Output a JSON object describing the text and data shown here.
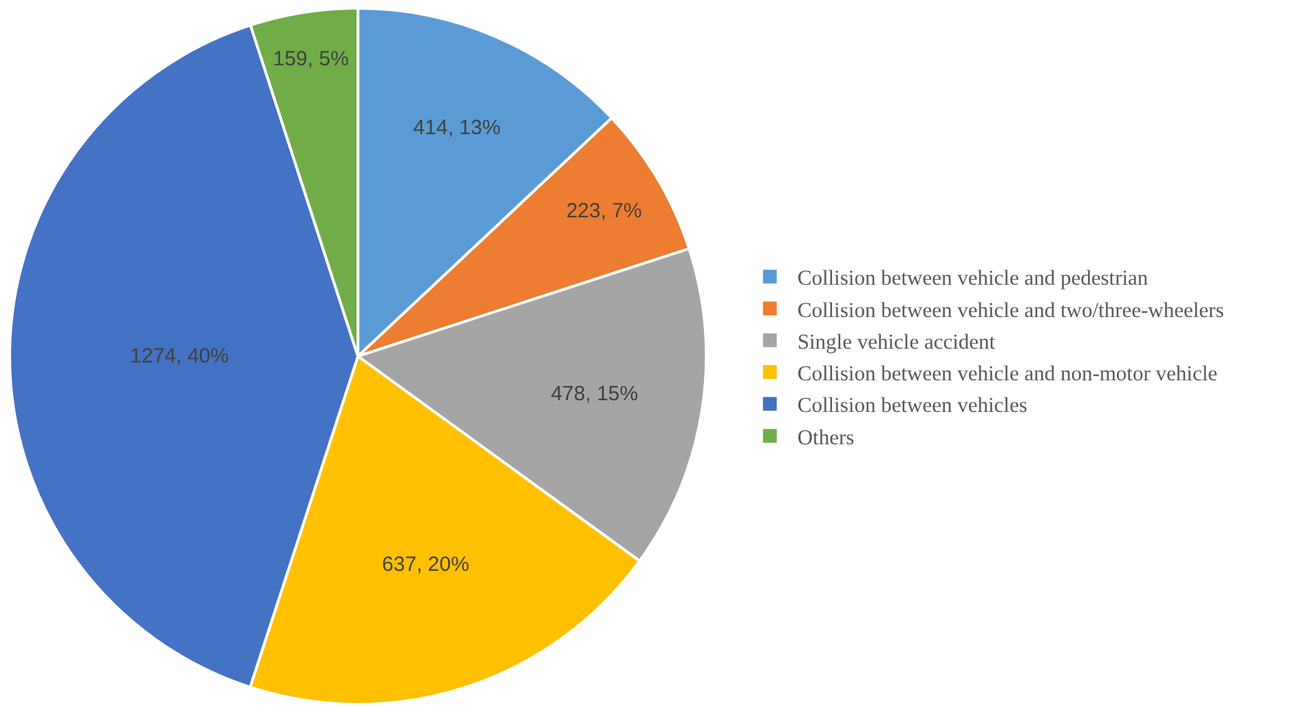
{
  "chart_data": {
    "type": "pie",
    "categories": [
      "Collision between vehicle and pedestrian",
      "Collision between vehicle and two/three-wheelers",
      "Single vehicle accident",
      "Collision between vehicle and non-motor vehicle",
      "Collision between vehicles",
      "Others"
    ],
    "values": [
      414,
      223,
      478,
      637,
      1274,
      159
    ],
    "colors": [
      "#5b9bd5",
      "#ed7d31",
      "#a5a5a5",
      "#ffc000",
      "#4472c4",
      "#70ad47"
    ],
    "value_labels": [
      "414, 13%",
      "223, 7%",
      "478, 15%",
      "637, 20%",
      "1274, 40%",
      "159, 5%"
    ],
    "legend": "right"
  }
}
